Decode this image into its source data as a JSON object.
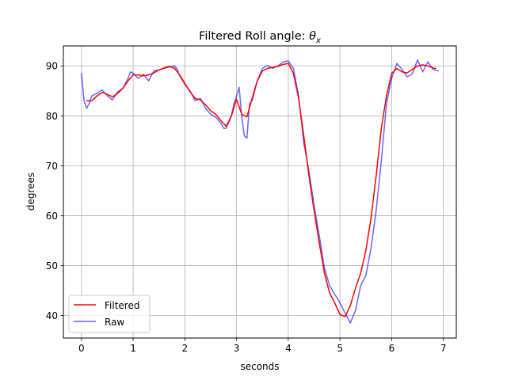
{
  "chart_data": {
    "type": "line",
    "title": "Filtered Roll angle: ",
    "title_math_symbol": "θ",
    "title_math_subscript": "x",
    "xlabel": "seconds",
    "ylabel": "degrees",
    "xlim": [
      -0.35,
      7.25
    ],
    "ylim": [
      35.5,
      94.0
    ],
    "xticks": [
      0,
      1,
      2,
      3,
      4,
      5,
      6,
      7
    ],
    "xtick_labels": [
      "0",
      "1",
      "2",
      "3",
      "4",
      "5",
      "6",
      "7"
    ],
    "yticks": [
      40,
      50,
      60,
      70,
      80,
      90
    ],
    "ytick_labels": [
      "40",
      "50",
      "60",
      "70",
      "80",
      "90"
    ],
    "grid": true,
    "legend_position": "lower-left",
    "series": [
      {
        "name": "Filtered",
        "color": "#ff0000",
        "x": [
          0.1,
          0.2,
          0.3,
          0.4,
          0.5,
          0.6,
          0.7,
          0.8,
          0.9,
          1.0,
          1.1,
          1.2,
          1.3,
          1.4,
          1.5,
          1.6,
          1.7,
          1.8,
          1.9,
          2.0,
          2.1,
          2.2,
          2.3,
          2.4,
          2.5,
          2.6,
          2.7,
          2.8,
          2.9,
          3.0,
          3.1,
          3.2,
          3.3,
          3.4,
          3.5,
          3.6,
          3.7,
          3.8,
          3.9,
          4.0,
          4.1,
          4.2,
          4.3,
          4.4,
          4.5,
          4.6,
          4.7,
          4.8,
          4.9,
          5.0,
          5.1,
          5.2,
          5.3,
          5.4,
          5.5,
          5.6,
          5.7,
          5.8,
          5.9,
          6.0,
          6.1,
          6.2,
          6.3,
          6.4,
          6.5,
          6.6,
          6.7,
          6.8,
          6.85
        ],
        "values": [
          83.0,
          83.0,
          84.0,
          84.7,
          84.3,
          83.8,
          84.5,
          85.5,
          87.0,
          88.2,
          88.2,
          88.0,
          88.2,
          88.6,
          89.2,
          89.6,
          89.9,
          89.5,
          88.2,
          86.5,
          84.8,
          83.5,
          83.2,
          82.2,
          81.0,
          80.3,
          79.0,
          77.9,
          80.0,
          83.3,
          80.3,
          79.8,
          83.5,
          87.0,
          89.0,
          89.5,
          89.7,
          89.9,
          90.3,
          90.5,
          88.5,
          83.5,
          76.0,
          68.0,
          61.0,
          54.5,
          48.5,
          44.5,
          42.5,
          40.2,
          39.8,
          42.0,
          45.5,
          48.5,
          53.0,
          59.5,
          68.0,
          77.5,
          84.0,
          88.5,
          89.5,
          88.8,
          88.6,
          89.3,
          90.0,
          90.2,
          90.0,
          89.6,
          89.5
        ]
      },
      {
        "name": "Raw",
        "color": "#0000ff",
        "x": [
          0.0,
          0.05,
          0.1,
          0.15,
          0.2,
          0.3,
          0.4,
          0.5,
          0.6,
          0.7,
          0.8,
          0.9,
          0.95,
          1.0,
          1.1,
          1.2,
          1.3,
          1.4,
          1.5,
          1.6,
          1.7,
          1.8,
          1.85,
          1.9,
          2.0,
          2.1,
          2.2,
          2.3,
          2.4,
          2.5,
          2.6,
          2.7,
          2.75,
          2.8,
          2.9,
          2.95,
          3.0,
          3.05,
          3.1,
          3.15,
          3.2,
          3.25,
          3.3,
          3.4,
          3.5,
          3.6,
          3.7,
          3.8,
          3.9,
          4.0,
          4.1,
          4.2,
          4.3,
          4.4,
          4.5,
          4.6,
          4.7,
          4.8,
          4.9,
          4.95,
          5.0,
          5.1,
          5.2,
          5.25,
          5.3,
          5.4,
          5.5,
          5.6,
          5.7,
          5.8,
          5.9,
          6.0,
          6.1,
          6.2,
          6.3,
          6.4,
          6.5,
          6.55,
          6.6,
          6.7,
          6.8,
          6.9
        ],
        "values": [
          88.5,
          83.0,
          81.5,
          82.5,
          84.0,
          84.5,
          85.2,
          84.0,
          83.2,
          84.8,
          85.5,
          87.5,
          88.8,
          88.5,
          87.5,
          88.3,
          87.0,
          89.0,
          89.2,
          89.5,
          89.8,
          90.0,
          89.4,
          88.0,
          86.3,
          85.0,
          83.0,
          83.5,
          81.5,
          80.3,
          79.7,
          78.5,
          77.5,
          77.5,
          80.0,
          82.5,
          84.0,
          85.7,
          79.8,
          76.0,
          75.5,
          82.5,
          83.0,
          87.0,
          89.5,
          90.1,
          89.5,
          90.0,
          90.8,
          91.0,
          89.5,
          84.0,
          74.5,
          69.0,
          62.0,
          56.0,
          49.5,
          46.0,
          44.2,
          43.5,
          42.5,
          40.5,
          38.5,
          39.8,
          41.0,
          46.0,
          48.0,
          53.5,
          61.0,
          71.0,
          82.5,
          87.5,
          90.5,
          89.3,
          87.8,
          88.4,
          91.2,
          90.0,
          88.8,
          90.8,
          89.3,
          89.0
        ]
      }
    ]
  }
}
